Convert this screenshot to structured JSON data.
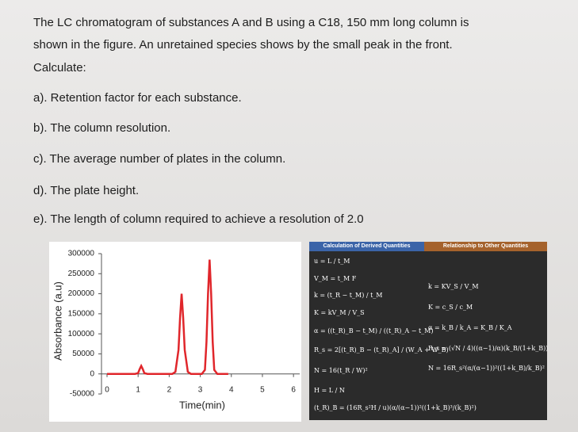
{
  "question": {
    "lines": [
      "The LC chromatogram of substances A and B using a C18, 150 mm long column is",
      "shown in the figure. An unretained species shows by the small peak in the front.",
      "Calculate:"
    ],
    "items": [
      "a). Retention factor for each substance.",
      "b). The column resolution.",
      "c). The average number of plates in the column.",
      "d). The plate height.",
      "e). The length of column required to achieve a resolution of 2.0"
    ]
  },
  "chart_data": {
    "type": "line",
    "xlabel": "Time(min)",
    "ylabel": "Absorbance (a.u)",
    "x": [
      0,
      0.9,
      1.0,
      1.05,
      1.1,
      1.15,
      1.2,
      1.3,
      2.1,
      2.2,
      2.3,
      2.35,
      2.4,
      2.45,
      2.5,
      2.6,
      2.7,
      3.05,
      3.15,
      3.2,
      3.25,
      3.3,
      3.35,
      3.4,
      3.45,
      3.55,
      3.9
    ],
    "series": [
      {
        "name": "Absorbance",
        "color": "#e0262b",
        "values": [
          0,
          0,
          2000,
          12000,
          20000,
          12000,
          2000,
          0,
          0,
          5000,
          60000,
          140000,
          200000,
          140000,
          60000,
          5000,
          0,
          0,
          10000,
          80000,
          200000,
          285000,
          200000,
          80000,
          10000,
          0,
          0
        ]
      }
    ],
    "xlim": [
      0,
      6.2
    ],
    "ylim": [
      -50000,
      300000
    ],
    "xticks": [
      0,
      1,
      2,
      3,
      4,
      5,
      6
    ],
    "yticks": [
      300000,
      250000,
      200000,
      150000,
      100000,
      50000,
      0,
      -50000
    ]
  },
  "table": {
    "headers": [
      "Calculation of Derived Quantities",
      "Relationship to Other Quantities"
    ],
    "left": [
      "u = L / t_M",
      "V_M = t_M F",
      "k = (t_R − t_M) / t_M",
      "K = kV_M / V_S",
      "α = ((t_R)_B − t_M) / ((t_R)_A − t_M)",
      "R_s = 2[(t_R)_B − (t_R)_A] / (W_A + W_B)",
      "N = 16(t_R / W)²",
      "H = L / N",
      "(t_R)_B = (16R_s²H / u)(α/(α−1))²((1+k_B)³/(k_B)²)"
    ],
    "right": [
      "k = KV_S / V_M",
      "K = c_S / c_M",
      "α = k_B / k_A = K_B / K_A",
      "R_s = (√N / 4)((α−1)/α)(k_B/(1+k_B))",
      "N = 16R_s²(α/(α−1))²((1+k_B)/k_B)²"
    ]
  }
}
